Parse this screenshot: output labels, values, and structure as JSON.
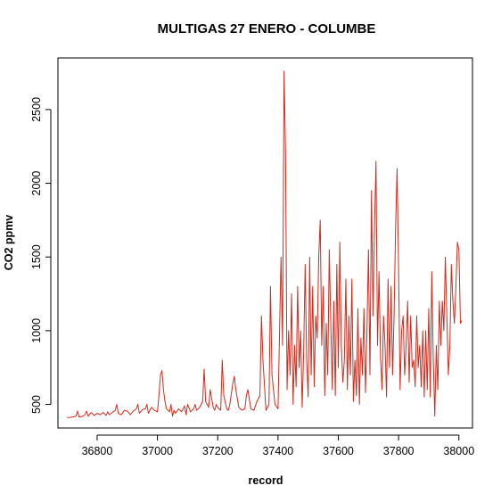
{
  "chart_data": {
    "type": "line",
    "title": "MULTIGAS 27 ENERO - COLUMBE",
    "xlabel": "record",
    "ylabel": "CO2 ppmv",
    "xlim": [
      36670,
      38045
    ],
    "ylim": [
      340,
      2850
    ],
    "xticks": [
      36800,
      37000,
      37200,
      37400,
      37600,
      37800,
      38000
    ],
    "yticks": [
      500,
      1000,
      1500,
      2000,
      2500
    ],
    "grid": false,
    "line_color": "#d42a1c",
    "series": [
      {
        "x": [
          36700,
          36710,
          36720,
          36730,
          36735,
          36740,
          36750,
          36760,
          36765,
          36770,
          36780,
          36790,
          36800,
          36810,
          36820,
          36830,
          36835,
          36840,
          36850,
          36860,
          36865,
          36870,
          36880,
          36890,
          36900,
          36910,
          36920,
          36930,
          36935,
          36940,
          36950,
          36960,
          36965,
          36970,
          36980,
          36990,
          37000,
          37005,
          37010,
          37015,
          37020,
          37025,
          37030,
          37040,
          37045,
          37050,
          37055,
          37060,
          37070,
          37080,
          37090,
          37095,
          37100,
          37110,
          37120,
          37125,
          37130,
          37140,
          37150,
          37155,
          37160,
          37170,
          37175,
          37180,
          37185,
          37190,
          37195,
          37200,
          37210,
          37215,
          37220,
          37230,
          37235,
          37240,
          37250,
          37255,
          37260,
          37270,
          37280,
          37290,
          37295,
          37300,
          37310,
          37320,
          37330,
          37340,
          37345,
          37350,
          37360,
          37370,
          37375,
          37380,
          37390,
          37400,
          37410,
          37415,
          37420,
          37425,
          37430,
          37435,
          37440,
          37445,
          37450,
          37455,
          37460,
          37465,
          37470,
          37475,
          37480,
          37485,
          37490,
          37495,
          37500,
          37505,
          37510,
          37515,
          37520,
          37525,
          37530,
          37535,
          37540,
          37545,
          37550,
          37555,
          37560,
          37565,
          37570,
          37575,
          37580,
          37585,
          37590,
          37595,
          37600,
          37605,
          37610,
          37615,
          37620,
          37625,
          37630,
          37635,
          37640,
          37645,
          37650,
          37655,
          37660,
          37665,
          37670,
          37675,
          37680,
          37685,
          37690,
          37695,
          37700,
          37705,
          37710,
          37715,
          37720,
          37725,
          37730,
          37735,
          37740,
          37745,
          37750,
          37755,
          37760,
          37765,
          37770,
          37775,
          37780,
          37785,
          37790,
          37795,
          37800,
          37805,
          37810,
          37815,
          37820,
          37825,
          37830,
          37835,
          37840,
          37845,
          37850,
          37855,
          37860,
          37865,
          37870,
          37875,
          37880,
          37885,
          37890,
          37895,
          37900,
          37905,
          37910,
          37915,
          37920,
          37925,
          37930,
          37935,
          37940,
          37945,
          37950,
          37955,
          37960,
          37965,
          37970,
          37975,
          37980,
          37985,
          37990,
          37995,
          38000,
          38005,
          38010
        ],
        "y": [
          410,
          412,
          415,
          420,
          455,
          415,
          418,
          430,
          455,
          420,
          445,
          425,
          440,
          430,
          445,
          425,
          450,
          430,
          445,
          460,
          500,
          440,
          430,
          460,
          455,
          430,
          455,
          470,
          500,
          440,
          465,
          470,
          500,
          440,
          480,
          460,
          450,
          560,
          700,
          730,
          600,
          520,
          470,
          450,
          500,
          420,
          460,
          440,
          470,
          450,
          490,
          430,
          500,
          450,
          470,
          500,
          460,
          480,
          520,
          740,
          520,
          480,
          600,
          540,
          480,
          460,
          500,
          480,
          460,
          800,
          560,
          470,
          460,
          500,
          640,
          690,
          600,
          480,
          460,
          470,
          560,
          600,
          470,
          460,
          520,
          560,
          1100,
          800,
          460,
          500,
          1300,
          700,
          500,
          470,
          1500,
          900,
          2760,
          2200,
          600,
          1000,
          700,
          1250,
          500,
          900,
          620,
          1300,
          750,
          1000,
          480,
          850,
          1450,
          800,
          550,
          1500,
          700,
          1300,
          620,
          1100,
          950,
          1500,
          1750,
          900,
          1300,
          560,
          1050,
          700,
          1550,
          1050,
          600,
          1200,
          560,
          1450,
          750,
          1600,
          900,
          650,
          800,
          1350,
          600,
          1100,
          700,
          1350,
          520,
          800,
          560,
          1150,
          500,
          950,
          700,
          1150,
          580,
          1000,
          1550,
          700,
          1950,
          1100,
          1700,
          2150,
          900,
          1400,
          820,
          600,
          1100,
          900,
          550,
          1350,
          750,
          1300,
          700,
          1100,
          1700,
          2100,
          1400,
          600,
          1000,
          1100,
          700,
          900,
          1200,
          650,
          1100,
          750,
          800,
          620,
          1100,
          750,
          900,
          620,
          1000,
          550,
          1000,
          600,
          1150,
          550,
          1400,
          800,
          420,
          900,
          600,
          1200,
          900,
          1200,
          1000,
          1500,
          1100,
          700,
          900,
          1450,
          1200,
          1050,
          1300,
          1600,
          1550,
          1050,
          1070
        ]
      }
    ]
  }
}
